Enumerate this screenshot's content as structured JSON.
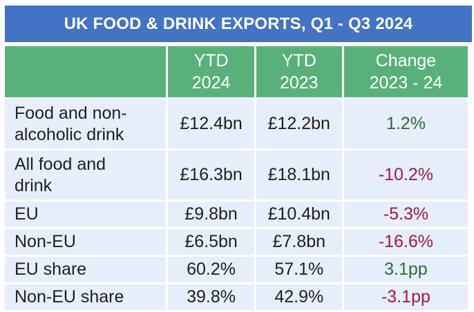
{
  "title": "UK FOOD & DRINK EXPORTS, Q1 - Q3 2024",
  "colors": {
    "title_bg": "#4472C4",
    "header_bg": "#59B07A",
    "cell_bg": "#E5EEF9",
    "positive": "#2E6B3A",
    "negative": "#A3174A"
  },
  "chart_data": {
    "type": "table",
    "title": "UK FOOD & DRINK EXPORTS, Q1 - Q3 2024",
    "columns": [
      "",
      "YTD 2024",
      "YTD 2023",
      "Change 2023 - 24"
    ],
    "header": {
      "ytd2024_line1": "YTD",
      "ytd2024_line2": "2024",
      "ytd2023_line1": "YTD",
      "ytd2023_line2": "2023",
      "change_line1": "Change",
      "change_line2": "2023 - 24"
    },
    "rows": [
      {
        "label_line1": "Food and non-",
        "label_line2": "alcoholic drink",
        "ytd2024": "£12.4bn",
        "ytd2023": "£12.2bn",
        "change": "1.2%"
      },
      {
        "label_line1": "All food and",
        "label_line2": "drink",
        "ytd2024": "£16.3bn",
        "ytd2023": "£18.1bn",
        "change": "-10.2%"
      },
      {
        "label": "EU",
        "ytd2024": "£9.8bn",
        "ytd2023": "£10.4bn",
        "change": "-5.3%"
      },
      {
        "label": "Non-EU",
        "ytd2024": "£6.5bn",
        "ytd2023": "£7.8bn",
        "change": "-16.6%"
      },
      {
        "label": "EU share",
        "ytd2024": "60.2%",
        "ytd2023": "57.1%",
        "change": "3.1pp"
      },
      {
        "label": "Non-EU share",
        "ytd2024": "39.8%",
        "ytd2023": "42.9%",
        "change": "-3.1pp"
      }
    ]
  }
}
